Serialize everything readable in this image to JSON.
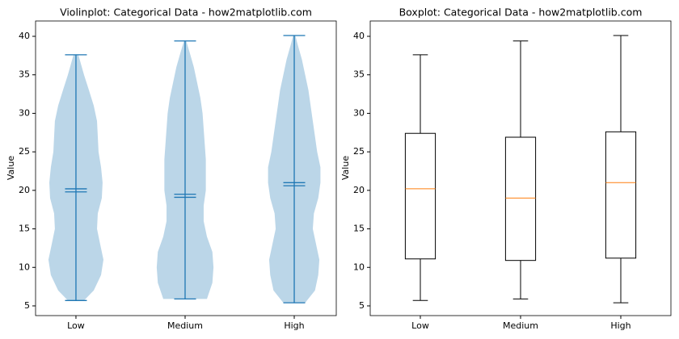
{
  "chart_data": [
    {
      "type": "violin",
      "title": "Violinplot: Categorical Data - how2matplotlib.com",
      "ylabel": "Value",
      "categories": [
        "Low",
        "Medium",
        "High"
      ],
      "color": "#1f77b4",
      "xlim": [
        0.63,
        3.385
      ],
      "ylim": [
        3.74,
        41.99
      ],
      "yticks": [
        5,
        10,
        15,
        20,
        25,
        30,
        35,
        40
      ],
      "violins": [
        {
          "min": 5.7,
          "max": 37.6,
          "mean": 19.8,
          "median": 20.2,
          "kde": {
            "y": [
              5.7,
              7,
              9,
              11,
              13,
              15,
              17,
              19,
              21,
              23,
              25,
              27,
              29,
              31,
              33,
              35,
              37.6
            ],
            "width": [
              0.074,
              0.163,
              0.23,
              0.252,
              0.222,
              0.193,
              0.2,
              0.237,
              0.244,
              0.23,
              0.207,
              0.2,
              0.193,
              0.163,
              0.119,
              0.074,
              0.022
            ]
          }
        },
        {
          "min": 5.9,
          "max": 39.4,
          "mean": 19.5,
          "median": 19.1,
          "kde": {
            "y": [
              5.9,
              8,
              10,
              12,
              14,
              16,
              18,
              20,
              22,
              24,
              26,
              28,
              30,
              32,
              34,
              36,
              38,
              39.4
            ],
            "width": [
              0.2,
              0.25,
              0.26,
              0.25,
              0.2,
              0.17,
              0.17,
              0.19,
              0.19,
              0.19,
              0.18,
              0.17,
              0.16,
              0.14,
              0.11,
              0.08,
              0.04,
              0.01
            ]
          }
        },
        {
          "min": 5.4,
          "max": 40.1,
          "mean": 20.6,
          "median": 21.0,
          "kde": {
            "y": [
              5.4,
              7,
              9,
              11,
              13,
              15,
              17,
              19,
              21,
              23,
              25,
              27,
              29,
              31,
              33,
              35,
              37,
              39,
              40.1
            ],
            "width": [
              0.1,
              0.19,
              0.22,
              0.23,
              0.2,
              0.17,
              0.18,
              0.22,
              0.24,
              0.24,
              0.21,
              0.19,
              0.17,
              0.15,
              0.13,
              0.1,
              0.07,
              0.03,
              0.01
            ]
          }
        }
      ]
    },
    {
      "type": "box",
      "title": "Boxplot: Categorical Data - how2matplotlib.com",
      "ylabel": "Value",
      "categories": [
        "Low",
        "Medium",
        "High"
      ],
      "color": "#000000",
      "median_color": "#ff7f0e",
      "xlim": [
        0.5,
        3.5
      ],
      "ylim": [
        3.74,
        41.99
      ],
      "yticks": [
        5,
        10,
        15,
        20,
        25,
        30,
        35,
        40
      ],
      "boxes": [
        {
          "whislo": 5.7,
          "q1": 11.1,
          "med": 20.2,
          "q3": 27.4,
          "whishi": 37.6
        },
        {
          "whislo": 5.9,
          "q1": 10.9,
          "med": 19.0,
          "q3": 26.9,
          "whishi": 39.4
        },
        {
          "whislo": 5.4,
          "q1": 11.2,
          "med": 21.0,
          "q3": 27.6,
          "whishi": 40.1
        }
      ]
    }
  ]
}
